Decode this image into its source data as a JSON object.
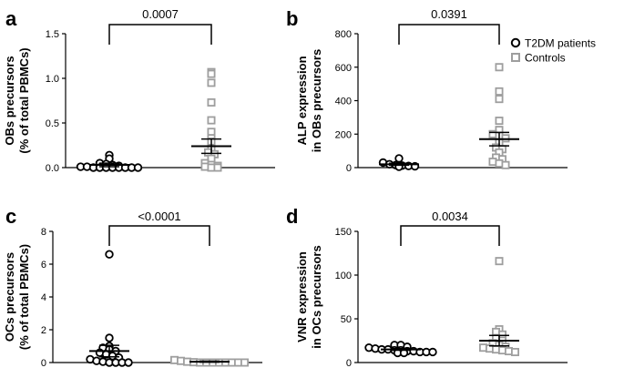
{
  "legend": {
    "position": "top-right",
    "entries": [
      {
        "label": "T2DM patients",
        "marker": "circle",
        "color": "#000000"
      },
      {
        "label": "Controls",
        "marker": "square",
        "color": "#9e9e9e"
      }
    ]
  },
  "chart_data": [
    {
      "panel": "a",
      "type": "scatter",
      "ylabel": [
        "OBs precursors",
        "(% of total PBMCs)"
      ],
      "ylim": [
        0,
        1.5
      ],
      "yticks": [
        "0.0",
        "0.5",
        "1.0",
        "1.5"
      ],
      "yticks_values": [
        0,
        0.5,
        1.0,
        1.5
      ],
      "p_value": "0.0007",
      "groups": [
        {
          "name": "T2DM patients",
          "marker": "circle",
          "mean": 0.03,
          "sem_low": 0.01,
          "sem_high": 0.05,
          "values": [
            0.14,
            0.1,
            0.05,
            0.04,
            0.03,
            0.02,
            0.01,
            0.01,
            0.0,
            0.0,
            0.0,
            0.0,
            0.0,
            0.0,
            0.0,
            0.0
          ]
        },
        {
          "name": "Controls",
          "marker": "square",
          "mean": 0.24,
          "sem_low": 0.16,
          "sem_high": 0.32,
          "values": [
            1.07,
            1.05,
            0.95,
            0.73,
            0.53,
            0.4,
            0.33,
            0.29,
            0.22,
            0.17,
            0.15,
            0.1,
            0.05,
            0.03,
            0.02,
            0.01,
            0.0,
            0.0
          ]
        }
      ]
    },
    {
      "panel": "b",
      "type": "scatter",
      "ylabel": [
        "ALP expression",
        "in OBs precursors"
      ],
      "ylim": [
        0,
        800
      ],
      "yticks": [
        "0",
        "200",
        "400",
        "600",
        "800"
      ],
      "yticks_values": [
        0,
        200,
        400,
        600,
        800
      ],
      "p_value": "0.0391",
      "groups": [
        {
          "name": "T2DM patients",
          "marker": "circle",
          "mean": 20,
          "sem_low": 14,
          "sem_high": 26,
          "values": [
            55,
            30,
            20,
            15,
            12,
            10,
            8,
            5
          ]
        },
        {
          "name": "Controls",
          "marker": "square",
          "mean": 170,
          "sem_low": 130,
          "sem_high": 210,
          "values": [
            600,
            455,
            410,
            280,
            225,
            200,
            190,
            175,
            150,
            120,
            110,
            90,
            60,
            50,
            35,
            25,
            15
          ]
        }
      ]
    },
    {
      "panel": "c",
      "type": "scatter",
      "ylabel": [
        "OCs precursors",
        "(% of total PBMCs)"
      ],
      "ylim": [
        0,
        8
      ],
      "yticks": [
        "0",
        "2",
        "4",
        "6",
        "8"
      ],
      "yticks_values": [
        0,
        2,
        4,
        6,
        8
      ],
      "p_value": "<0.0001",
      "groups": [
        {
          "name": "T2DM patients",
          "marker": "circle",
          "mean": 0.7,
          "sem_low": 0.35,
          "sem_high": 1.05,
          "values": [
            6.6,
            1.5,
            1.0,
            0.9,
            0.8,
            0.7,
            0.6,
            0.5,
            0.4,
            0.3,
            0.2,
            0.1,
            0.05,
            0.0,
            0.0,
            0.0,
            0.0
          ]
        },
        {
          "name": "Controls",
          "marker": "square",
          "mean": 0.05,
          "sem_low": 0.02,
          "sem_high": 0.08,
          "values": [
            0.15,
            0.1,
            0.05,
            0.02,
            0.0,
            0.0,
            0.0,
            0.0,
            0.0,
            0.0,
            0.0,
            0.0
          ]
        }
      ]
    },
    {
      "panel": "d",
      "type": "scatter",
      "ylabel": [
        "VNR expression",
        "in OCs precursors"
      ],
      "ylim": [
        0,
        150
      ],
      "yticks": [
        "0",
        "50",
        "100",
        "150"
      ],
      "yticks_values": [
        0,
        50,
        100,
        150
      ],
      "p_value": "0.0034",
      "groups": [
        {
          "name": "T2DM patients",
          "marker": "circle",
          "mean": 15,
          "sem_low": 14,
          "sem_high": 16,
          "values": [
            20,
            20,
            18,
            17,
            16,
            15,
            15,
            14,
            14,
            13,
            13,
            12,
            12,
            12,
            11,
            11
          ]
        },
        {
          "name": "Controls",
          "marker": "square",
          "mean": 25,
          "sem_low": 19,
          "sem_high": 31,
          "values": [
            116,
            38,
            35,
            32,
            28,
            25,
            22,
            20,
            18,
            17,
            16,
            15,
            14,
            13,
            12
          ]
        }
      ]
    }
  ]
}
